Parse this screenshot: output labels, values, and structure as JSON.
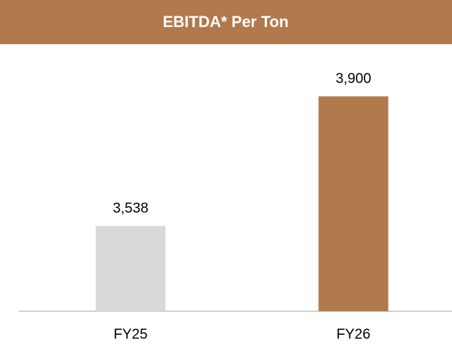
{
  "chart_data": {
    "type": "bar",
    "title": "EBITDA* Per Ton",
    "categories": [
      "FY25",
      "FY26"
    ],
    "values": [
      3538,
      3900
    ],
    "value_labels": [
      "3,538",
      "3,900"
    ],
    "colors": [
      "#d9d9d9",
      "#b07a4d"
    ],
    "ylim": [
      3300,
      4000
    ]
  }
}
